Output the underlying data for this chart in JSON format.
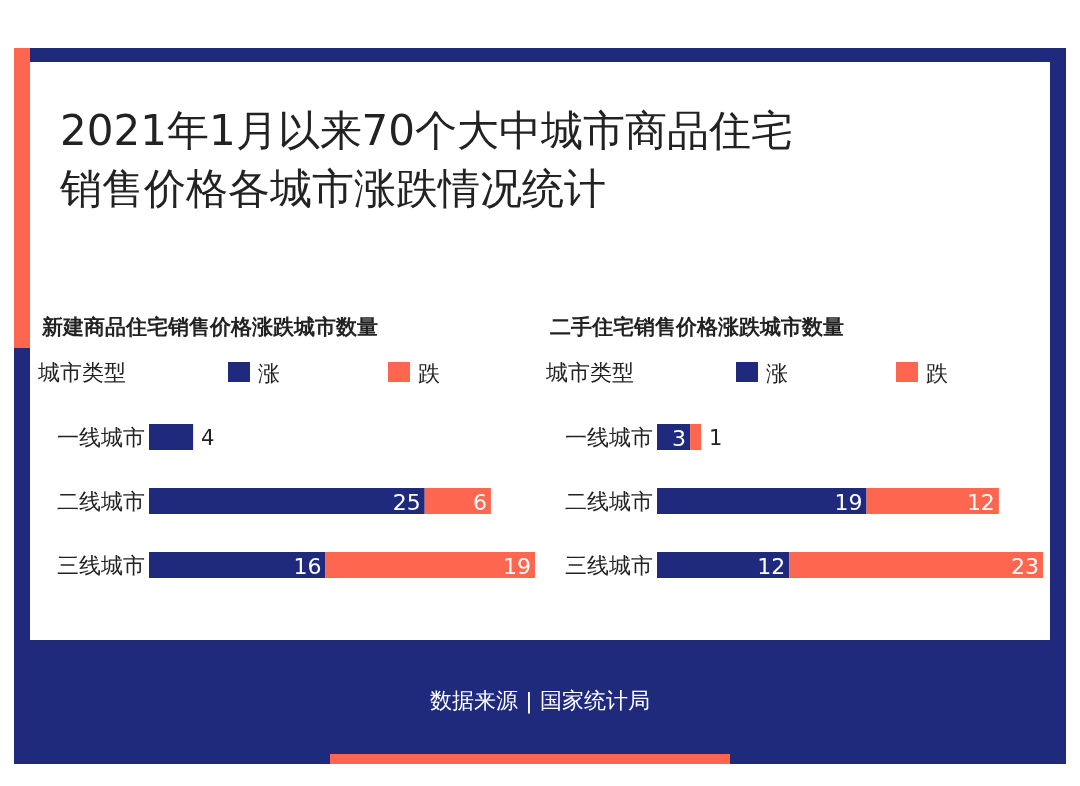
{
  "chart_data": [
    {
      "type": "bar",
      "orientation": "horizontal",
      "stacked": true,
      "title": "2021年1月以来70个大中城市商品住宅销售价格各城市涨跌情况统计",
      "subtitle": "新建商品住宅销售价格涨跌城市数量",
      "ylabel": "城市类型",
      "categories": [
        "一线城市",
        "二线城市",
        "三线城市"
      ],
      "legend": "top",
      "data_labels": true,
      "series": [
        {
          "name": "涨",
          "color": "#1f2a7c",
          "values": [
            4,
            25,
            16
          ]
        },
        {
          "name": "跌",
          "color": "#ff6650",
          "values": [
            null,
            6,
            19
          ]
        }
      ]
    },
    {
      "type": "bar",
      "orientation": "horizontal",
      "stacked": true,
      "subtitle": "二手住宅销售价格涨跌城市数量",
      "ylabel": "城市类型",
      "categories": [
        "一线城市",
        "二线城市",
        "三线城市"
      ],
      "legend": "top",
      "data_labels": true,
      "series": [
        {
          "name": "涨",
          "color": "#1f2a7c",
          "values": [
            3,
            19,
            12
          ]
        },
        {
          "name": "跌",
          "color": "#ff6650",
          "values": [
            1,
            12,
            23
          ]
        }
      ],
      "annotations": [
        "数据来源 | 国家统计局"
      ]
    }
  ]
}
